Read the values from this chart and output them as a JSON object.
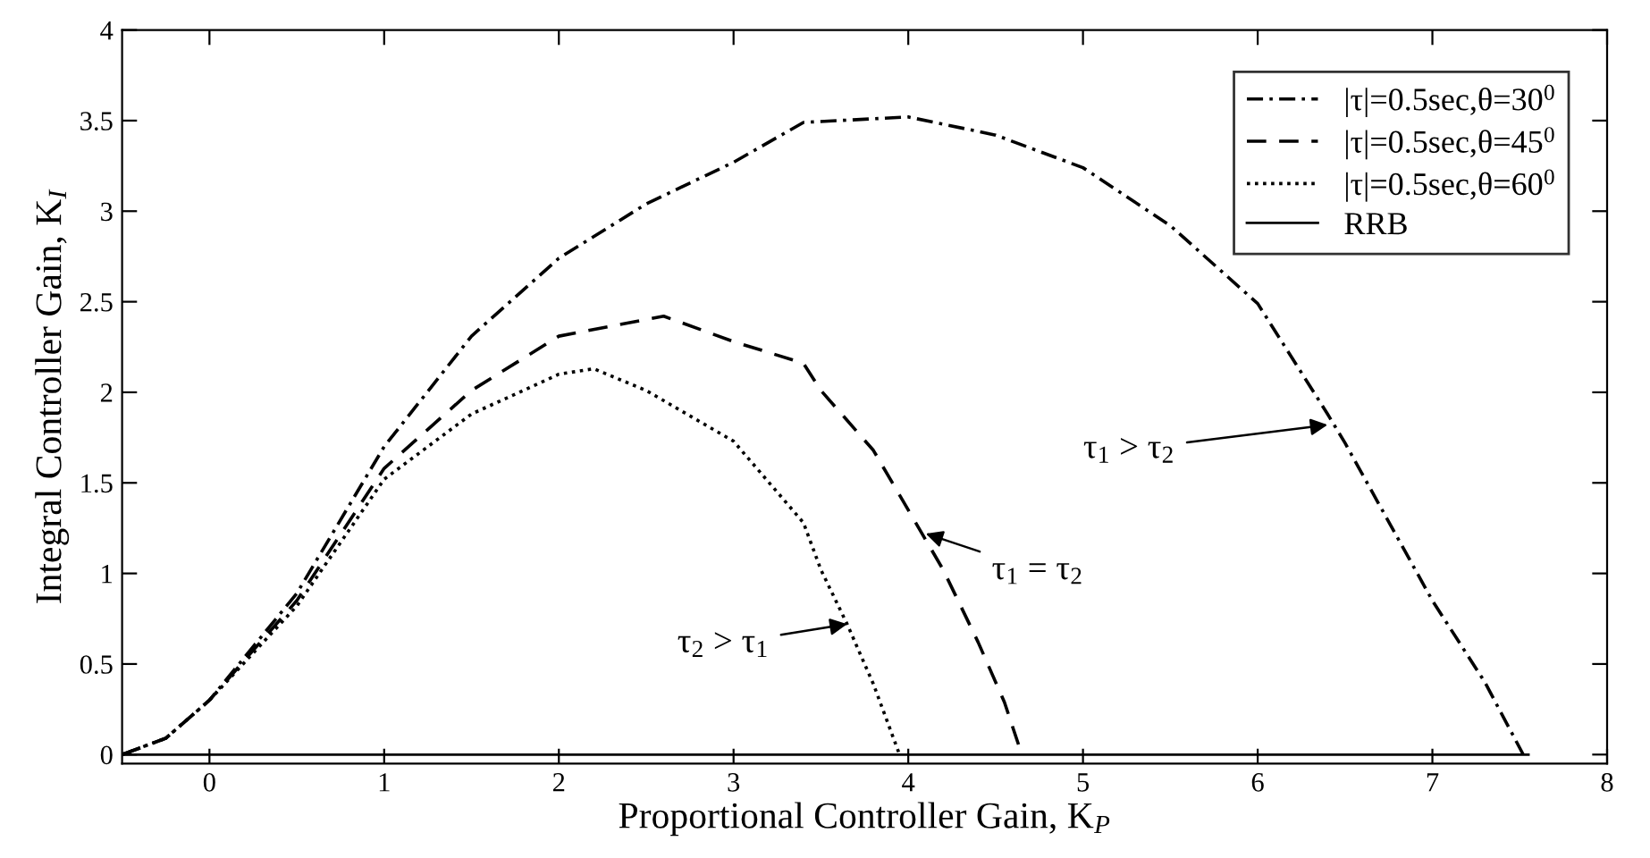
{
  "chart_data": {
    "type": "line",
    "xlabel": "Proportional Controller Gain, K$_{P}$",
    "ylabel": "Integral Controller Gain, K$_{I}$",
    "xlim": [
      -0.5,
      8
    ],
    "ylim": [
      -0.05,
      4
    ],
    "xticks": [
      0,
      1,
      2,
      3,
      4,
      5,
      6,
      7,
      8
    ],
    "yticks": [
      0,
      0.5,
      1,
      1.5,
      2,
      2.5,
      3,
      3.5,
      4
    ],
    "legend": "top right",
    "grid": false,
    "marker": "none",
    "series": [
      {
        "name": "|τ|=0.5sec,θ=30$^{0}$",
        "color": "#000000",
        "line_style": "dashdot",
        "x": [
          -0.5,
          -0.25,
          0,
          0.5,
          1,
          1.5,
          2,
          2.5,
          3,
          3.4,
          4,
          4.5,
          5,
          5.5,
          6,
          6.4,
          6.5,
          7,
          7.3,
          7.52
        ],
        "values": [
          0,
          0.09,
          0.3,
          0.89,
          1.7,
          2.31,
          2.74,
          3.04,
          3.27,
          3.49,
          3.52,
          3.42,
          3.24,
          2.92,
          2.49,
          1.88,
          1.72,
          0.85,
          0.4,
          0
        ]
      },
      {
        "name": "|τ|=0.5sec,θ=45$^{0}$",
        "color": "#000000",
        "line_style": "dashed",
        "x": [
          -0.5,
          -0.25,
          0,
          0.5,
          1,
          1.5,
          2,
          2.6,
          3,
          3.4,
          3.5,
          3.8,
          4,
          4.2,
          4.4,
          4.55,
          4.65
        ],
        "values": [
          0,
          0.09,
          0.3,
          0.85,
          1.58,
          2.01,
          2.31,
          2.42,
          2.28,
          2.16,
          2.01,
          1.68,
          1.35,
          1.02,
          0.62,
          0.29,
          0
        ]
      },
      {
        "name": "|τ|=0.5sec,θ=60$^{0}$",
        "color": "#000000",
        "line_style": "dotted",
        "x": [
          -0.5,
          -0.25,
          0,
          0.5,
          1,
          1.5,
          2,
          2.2,
          2.5,
          3,
          3.4,
          3.5,
          3.65,
          3.8,
          3.95
        ],
        "values": [
          0,
          0.09,
          0.3,
          0.82,
          1.52,
          1.88,
          2.1,
          2.13,
          2.01,
          1.73,
          1.28,
          1.02,
          0.72,
          0.39,
          0
        ]
      },
      {
        "name": "RRB",
        "color": "#000000",
        "line_style": "solid",
        "x": [
          -0.5,
          7.55
        ],
        "values": [
          0,
          0
        ]
      }
    ],
    "annotations": [
      {
        "text": "τ$_{2}$ > τ$_{1}$",
        "x": 3.65,
        "y": 0.72
      },
      {
        "text": "τ$_{1}$ = τ$_{2}$",
        "x": 4.1,
        "y": 1.22
      },
      {
        "text": "τ$_{1}$ > τ$_{2}$",
        "x": 6.4,
        "y": 1.82
      }
    ]
  }
}
